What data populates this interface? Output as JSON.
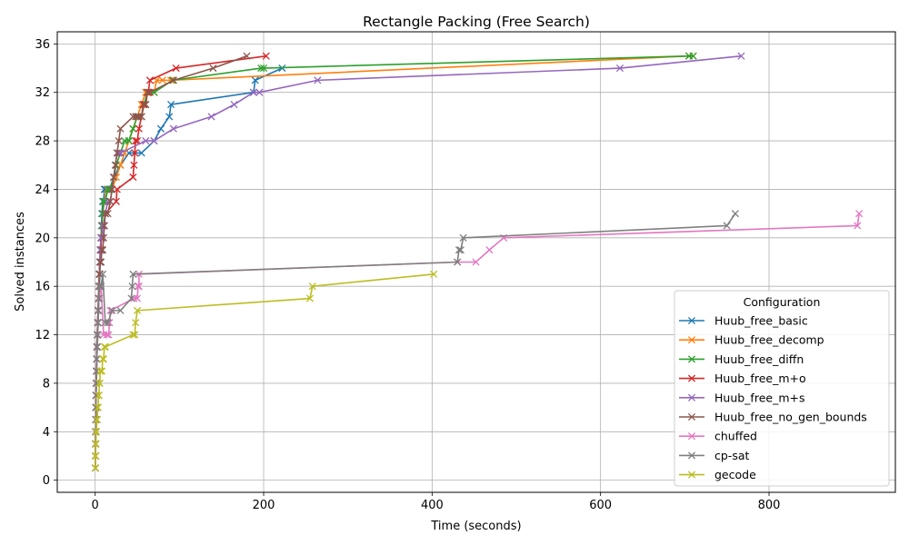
{
  "chart_data": {
    "type": "line",
    "title": "Rectangle Packing (Free Search)",
    "xlabel": "Time (seconds)",
    "ylabel": "Solved instances",
    "xlim": [
      -45,
      950
    ],
    "ylim": [
      -1,
      37
    ],
    "xticks": [
      0,
      200,
      400,
      600,
      800
    ],
    "yticks": [
      0,
      4,
      8,
      12,
      16,
      20,
      24,
      28,
      32,
      36
    ],
    "grid": true,
    "legend": {
      "title": "Configuration",
      "placement": "lower-right"
    },
    "series": [
      {
        "name": "Huub_free_basic",
        "color": "#1f77b4",
        "x": [
          0.3,
          0.4,
          0.5,
          0.6,
          0.7,
          0.8,
          1,
          1.3,
          1.6,
          2,
          2.5,
          3,
          3.5,
          4,
          4.5,
          5,
          5.5,
          6,
          6.5,
          7,
          7.5,
          8,
          9,
          10,
          11,
          12,
          14,
          17,
          22,
          30,
          40,
          55,
          70,
          78,
          88,
          90,
          188,
          190,
          222
        ],
        "y": [
          1,
          2,
          3,
          4,
          5,
          6,
          7,
          8,
          9,
          10,
          11,
          12,
          13,
          14,
          15,
          16,
          17,
          18,
          19,
          20,
          21,
          22,
          23,
          23,
          24,
          24,
          24,
          24,
          25,
          26,
          27,
          27,
          28,
          29,
          30,
          31,
          32,
          33,
          34
        ]
      },
      {
        "name": "Huub_free_decomp",
        "color": "#ff7f0e",
        "x": [
          0.3,
          0.4,
          0.5,
          0.6,
          0.7,
          0.8,
          1,
          1.2,
          1.5,
          1.8,
          2,
          2.5,
          3,
          3.5,
          4,
          4.5,
          5,
          5.5,
          6,
          7,
          8,
          9,
          11,
          14,
          20,
          25,
          30,
          35,
          40,
          45,
          50,
          55,
          60,
          65,
          70,
          73,
          80,
          90,
          705,
          710
        ],
        "y": [
          1,
          2,
          3,
          4,
          5,
          6,
          7,
          8,
          9,
          10,
          11,
          12,
          13,
          14,
          15,
          16,
          17,
          18,
          19,
          20,
          21,
          22,
          23,
          24,
          24,
          25,
          26,
          27,
          28,
          29,
          30,
          31,
          32,
          32,
          32,
          33,
          33,
          33,
          35,
          35
        ]
      },
      {
        "name": "Huub_free_diffn",
        "color": "#2ca02c",
        "x": [
          0.3,
          0.4,
          0.5,
          0.6,
          0.7,
          0.8,
          1,
          1.2,
          1.5,
          1.8,
          2,
          2.5,
          3,
          3.5,
          4,
          4.5,
          5,
          5.5,
          6,
          7,
          8,
          9,
          10,
          12,
          15,
          18,
          22,
          25,
          30,
          35,
          40,
          45,
          50,
          55,
          58,
          62,
          70,
          92,
          197,
          200,
          705,
          710
        ],
        "y": [
          1,
          2,
          3,
          4,
          5,
          6,
          7,
          8,
          9,
          10,
          11,
          12,
          13,
          14,
          15,
          16,
          17,
          18,
          19,
          20,
          21,
          22,
          23,
          23,
          24,
          24,
          25,
          26,
          27,
          28,
          28,
          29,
          30,
          30,
          31,
          32,
          32,
          33,
          34,
          34,
          35,
          35
        ]
      },
      {
        "name": "Huub_free_m+o",
        "color": "#d62728",
        "x": [
          0.3,
          0.4,
          0.5,
          0.6,
          0.7,
          0.8,
          1,
          1.2,
          1.5,
          1.8,
          2,
          2.5,
          3,
          3.5,
          4,
          4.5,
          5,
          5.5,
          6,
          6.5,
          7,
          7.5,
          8,
          9,
          10,
          12,
          25,
          26,
          45,
          46,
          47,
          48,
          50,
          52,
          55,
          57,
          60,
          62,
          63,
          65,
          96,
          203
        ],
        "y": [
          1,
          2,
          3,
          4,
          5,
          6,
          7,
          8,
          9,
          10,
          11,
          12,
          13,
          14,
          15,
          16,
          17,
          18,
          18,
          19,
          19,
          20,
          20,
          21,
          21,
          22,
          23,
          24,
          25,
          26,
          27,
          28,
          28,
          29,
          30,
          31,
          31,
          32,
          32,
          33,
          34,
          35
        ]
      },
      {
        "name": "Huub_free_m+s",
        "color": "#9467bd",
        "x": [
          0.3,
          0.4,
          0.5,
          0.6,
          0.7,
          0.8,
          1,
          1.2,
          1.5,
          1.8,
          2,
          2.5,
          3,
          3.5,
          4,
          4.5,
          5,
          5.5,
          6,
          7,
          8,
          9,
          10,
          12,
          15,
          18,
          20,
          22,
          24,
          26,
          28,
          30,
          60,
          70,
          93,
          138,
          165,
          188,
          195,
          264,
          623,
          767
        ],
        "y": [
          1,
          2,
          3,
          4,
          5,
          6,
          7,
          8,
          9,
          10,
          11,
          12,
          13,
          14,
          15,
          16,
          17,
          18,
          19,
          20,
          20,
          21,
          21,
          22,
          23,
          23,
          24,
          25,
          26,
          27,
          27,
          27,
          28,
          28,
          29,
          30,
          31,
          32,
          32,
          33,
          34,
          35
        ]
      },
      {
        "name": "Huub_free_no_gen_bounds",
        "color": "#8c564b",
        "x": [
          0.3,
          0.4,
          0.5,
          0.6,
          0.7,
          0.8,
          1,
          1.2,
          1.5,
          1.8,
          2,
          2.5,
          3,
          3.5,
          4,
          4.5,
          5,
          5.5,
          6,
          7,
          8,
          9,
          10,
          11,
          12,
          15,
          18,
          20,
          22,
          24,
          26,
          28,
          30,
          45,
          48,
          50,
          52,
          55,
          58,
          60,
          62,
          65,
          93,
          140,
          180
        ],
        "y": [
          1,
          2,
          3,
          4,
          5,
          6,
          7,
          8,
          9,
          10,
          11,
          12,
          13,
          14,
          15,
          16,
          17,
          17,
          18,
          18,
          19,
          19,
          20,
          21,
          22,
          22,
          23,
          24,
          25,
          26,
          27,
          28,
          29,
          30,
          30,
          30,
          30,
          30,
          31,
          31,
          32,
          32,
          33,
          34,
          35
        ]
      },
      {
        "name": "chuffed",
        "color": "#e377c2",
        "x": [
          0.3,
          0.4,
          0.5,
          0.6,
          0.8,
          1,
          1.2,
          1.5,
          1.8,
          2,
          2.5,
          3,
          3.5,
          4,
          4.5,
          5,
          6,
          7,
          10,
          14,
          16,
          17,
          18,
          46,
          50,
          51,
          52,
          52,
          430,
          452,
          468,
          485,
          905,
          907
        ],
        "y": [
          1,
          2,
          3,
          4,
          5,
          6,
          7,
          8,
          9,
          10,
          11,
          12,
          13,
          14,
          15,
          15,
          16,
          16,
          12,
          12,
          12,
          13,
          14,
          15,
          15,
          16,
          16,
          17,
          18,
          18,
          19,
          20,
          21,
          22
        ]
      },
      {
        "name": "cp-sat",
        "color": "#7f7f7f",
        "x": [
          0.3,
          0.4,
          0.5,
          0.6,
          0.8,
          1,
          1.2,
          1.5,
          1.8,
          2,
          2.5,
          3,
          3.5,
          4,
          4.5,
          5,
          6,
          7,
          9,
          12,
          15,
          20,
          30,
          43,
          44,
          45,
          430,
          432,
          434,
          437,
          750,
          760
        ],
        "y": [
          1,
          2,
          3,
          4,
          5,
          6,
          7,
          8,
          9,
          10,
          11,
          12,
          13,
          14,
          15,
          16,
          16,
          16,
          17,
          13,
          13,
          14,
          14,
          15,
          16,
          17,
          18,
          19,
          19,
          20,
          21,
          22
        ]
      },
      {
        "name": "gecode",
        "color": "#bcbd22",
        "x": [
          0.3,
          0.4,
          0.5,
          0.6,
          0.8,
          1,
          1.2,
          1.5,
          2,
          2.5,
          3,
          3.5,
          4,
          4.5,
          5,
          5.5,
          6,
          8,
          9,
          10,
          11,
          12,
          45,
          47,
          48,
          50,
          255,
          258,
          402
        ],
        "y": [
          1,
          1,
          2,
          2,
          3,
          3,
          4,
          4,
          5,
          5,
          6,
          6,
          7,
          7,
          8,
          8,
          9,
          9,
          10,
          10,
          11,
          11,
          12,
          12,
          13,
          14,
          15,
          16,
          17
        ]
      }
    ]
  }
}
